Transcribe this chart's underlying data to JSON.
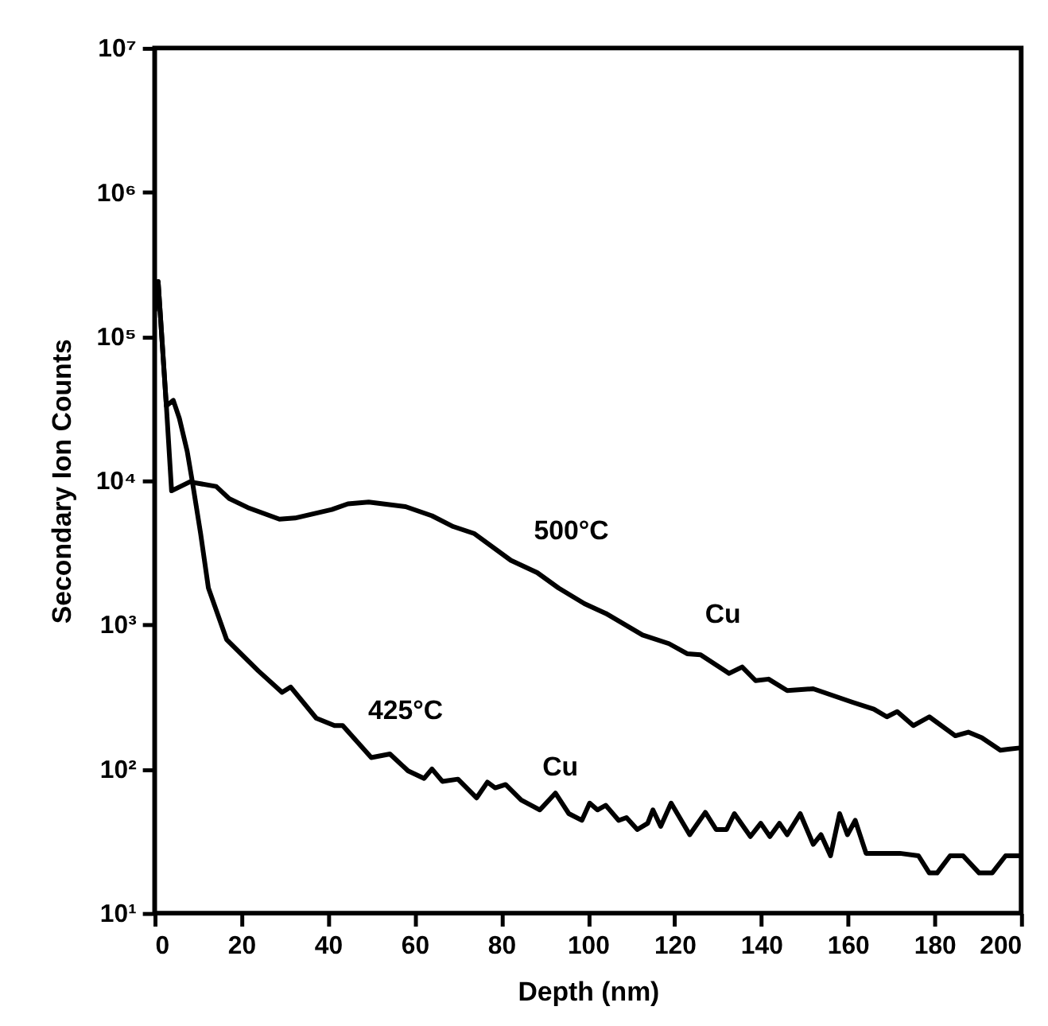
{
  "chart_data": {
    "type": "line",
    "xlabel": "Depth (nm)",
    "ylabel": "Secondary Ion Counts",
    "log": "y",
    "grid": false,
    "marker": "none",
    "line_style": "solid",
    "xlim": [
      0,
      200
    ],
    "xticks": [
      0,
      20,
      40,
      60,
      80,
      100,
      120,
      140,
      160,
      180,
      200
    ],
    "ylim": [
      10,
      10000000
    ],
    "yticks": [
      {
        "value": 10,
        "label": "10¹"
      },
      {
        "value": 100,
        "label": "10²"
      },
      {
        "value": 1000,
        "label": "10³"
      },
      {
        "value": 10000,
        "label": "10⁴"
      },
      {
        "value": 100000,
        "label": "10⁵"
      },
      {
        "value": 1000000,
        "label": "10⁶"
      },
      {
        "value": 10000000,
        "label": "10⁷"
      }
    ],
    "series": [
      {
        "color": "#000000",
        "x": [
          0,
          0.8,
          2.7,
          3.9,
          8.1,
          14.2,
          17.2,
          21.5,
          28.8,
          32.4,
          40.9,
          44.6,
          49.4,
          57.9,
          64,
          68.9,
          73.7,
          82.2,
          88.3,
          93.2,
          99.2,
          104.1,
          112.6,
          118.7,
          122.9,
          126,
          132.6,
          135.6,
          138.7,
          141.7,
          146,
          152,
          161.1,
          166,
          169,
          171.4,
          175.1,
          178.8,
          184.8,
          187.8,
          190.9,
          195.2,
          199.7
        ],
        "values": [
          150000,
          240000,
          33000,
          8500,
          9800,
          9100,
          7500,
          6500,
          5400,
          5500,
          6300,
          6900,
          7100,
          6600,
          5700,
          4800,
          4300,
          2800,
          2300,
          1800,
          1400,
          1200,
          850,
          740,
          630,
          620,
          460,
          510,
          410,
          420,
          350,
          360,
          290,
          260,
          230,
          250,
          200,
          230,
          170,
          180,
          165,
          135,
          140
        ]
      },
      {
        "color": "#000000",
        "x": [
          0,
          0.8,
          2.7,
          4.3,
          5.7,
          7.5,
          8.7,
          10.6,
          12.4,
          16.6,
          23.9,
          29.4,
          31.4,
          37.3,
          41.5,
          43.4,
          50,
          54.3,
          58.5,
          62.2,
          64,
          66.4,
          70,
          74.3,
          76.8,
          78.6,
          81,
          84.6,
          88.9,
          92.5,
          95.6,
          98.6,
          100.4,
          102.2,
          104.1,
          107.1,
          108.9,
          111.4,
          113.8,
          115,
          116.8,
          119.2,
          123.5,
          127.1,
          129.6,
          132,
          133.8,
          137.5,
          139.9,
          142,
          144.2,
          146,
          149,
          152,
          153.8,
          156,
          158.1,
          159.9,
          161.7,
          164.2,
          172,
          176.3,
          178.8,
          180.6,
          183.6,
          186.6,
          190.3,
          193.3,
          196.4,
          199.7
        ],
        "values": [
          150000,
          240000,
          33000,
          36000,
          27000,
          16000,
          9800,
          4300,
          1800,
          790,
          480,
          340,
          370,
          225,
          200,
          200,
          120,
          127,
          97,
          86,
          100,
          82,
          85,
          63,
          81,
          74,
          78,
          61,
          52,
          68,
          49,
          44,
          58,
          52,
          56,
          44,
          46,
          38,
          42,
          52,
          40,
          58,
          35,
          50,
          38,
          38,
          49,
          34,
          42,
          34,
          42,
          35,
          49,
          30,
          35,
          25,
          49,
          35,
          44,
          26,
          26,
          25,
          19,
          19,
          25,
          25,
          19,
          19,
          25,
          25
        ]
      }
    ],
    "annotations": [
      "500°C",
      "Cu",
      "425°C",
      "Cu"
    ]
  }
}
